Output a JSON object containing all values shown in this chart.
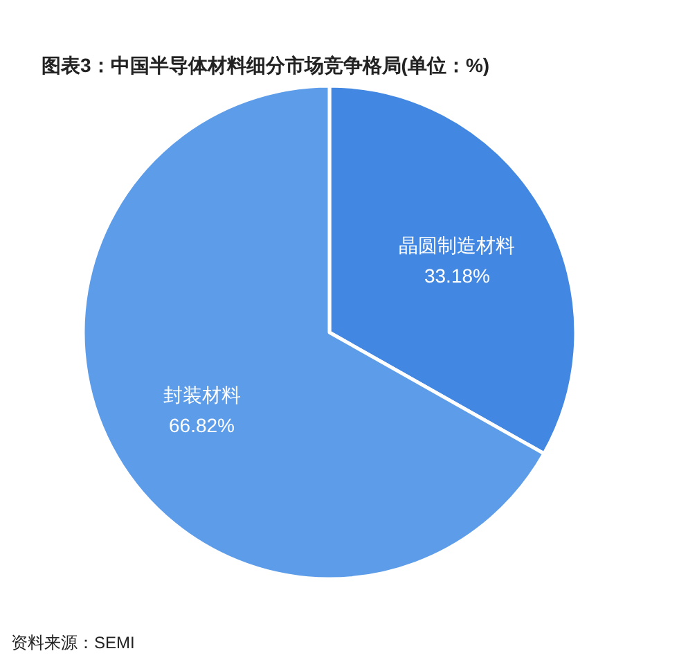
{
  "chart_data": {
    "type": "pie",
    "title": "图表3：中国半导体材料细分市场竞争格局(单位：%)",
    "categories": [
      "晶圆制造材料",
      "封装材料"
    ],
    "values": [
      33.18,
      66.82
    ],
    "value_labels": [
      "33.18%",
      "66.82%"
    ],
    "colors": [
      "#4287e2",
      "#5c9ce9"
    ],
    "annotations": [
      "资料来源：SEMI"
    ]
  }
}
